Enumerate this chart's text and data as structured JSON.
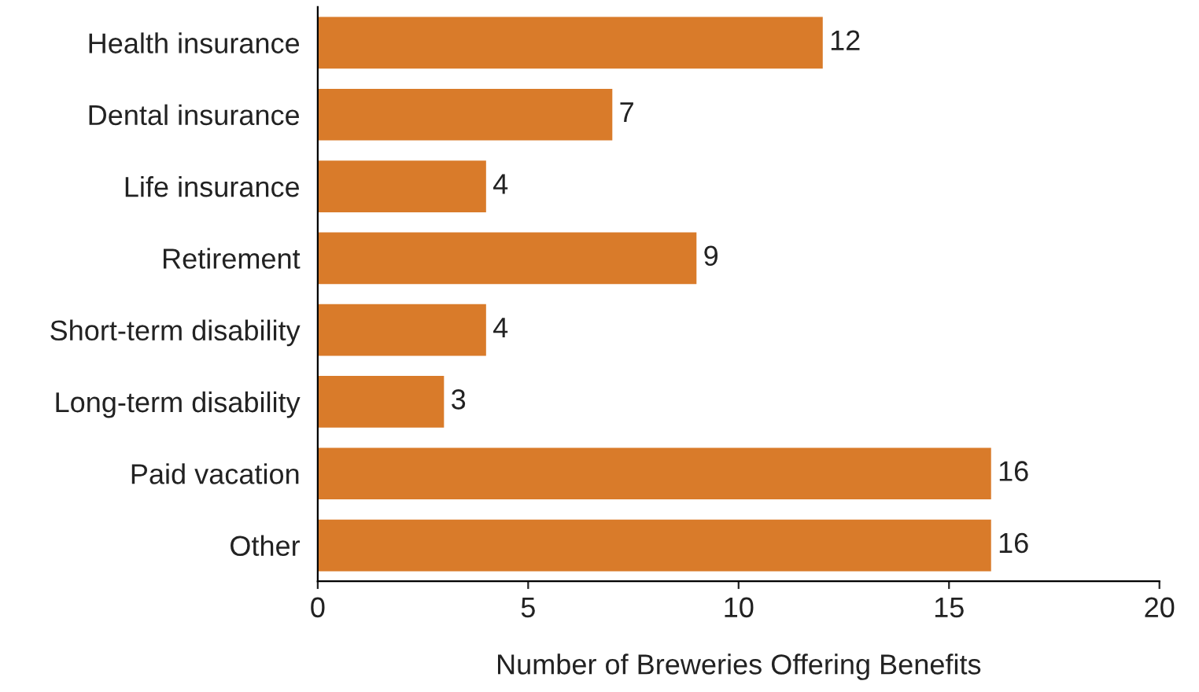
{
  "chart_data": {
    "type": "bar",
    "orientation": "horizontal",
    "categories": [
      "Health insurance",
      "Dental insurance",
      "Life insurance",
      "Retirement",
      "Short-term disability",
      "Long-term disability",
      "Paid vacation",
      "Other"
    ],
    "values": [
      12,
      7,
      4,
      9,
      4,
      3,
      16,
      16
    ],
    "color": "#d97b2a",
    "xlabel": "Number of Breweries Offering Benefits",
    "xlim": [
      0,
      20
    ],
    "xticks": [
      0,
      5,
      10,
      15,
      20
    ],
    "data_labels": true,
    "grid": false,
    "legend": false
  }
}
